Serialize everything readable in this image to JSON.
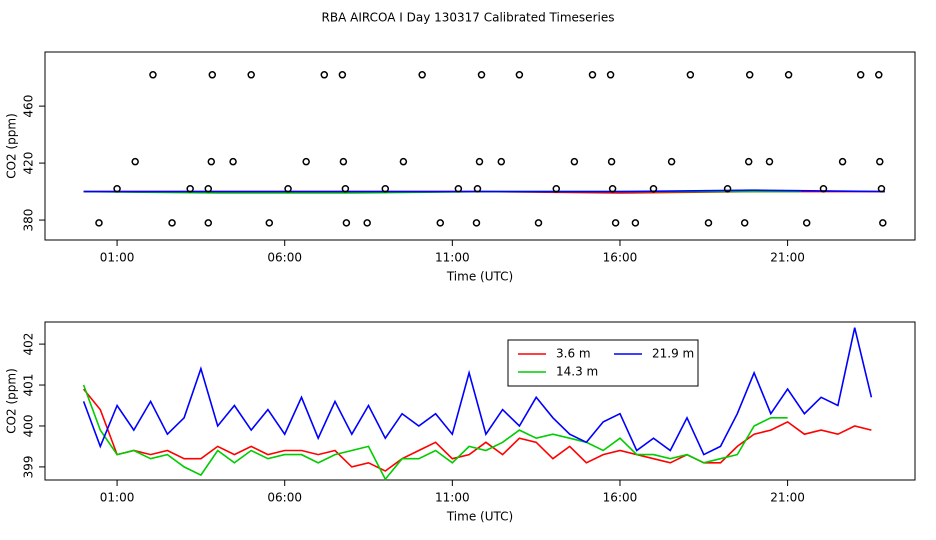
{
  "chart_data": [
    {
      "type": "line",
      "title": "RBA AIRCOA I  Day 130317  Calibrated Timeseries",
      "x_label": "Time (UTC)",
      "y_label": "CO2 (ppm)",
      "xlim": [
        -1.15,
        24.8
      ],
      "ylim": [
        366,
        498
      ],
      "xticks": [
        {
          "value": 1,
          "label": "01:00"
        },
        {
          "value": 6,
          "label": "06:00"
        },
        {
          "value": 11,
          "label": "11:00"
        },
        {
          "value": 16,
          "label": "16:00"
        },
        {
          "value": 21,
          "label": "21:00"
        }
      ],
      "yticks": [
        380,
        420,
        460
      ],
      "series": [
        {
          "color": "#ff0000",
          "style": "line",
          "x": [
            0,
            4,
            8,
            12,
            16,
            20,
            23.9
          ],
          "values": [
            400,
            400,
            400,
            400,
            399,
            400,
            400
          ]
        },
        {
          "color": "#00cc00",
          "style": "line",
          "x": [
            0,
            4,
            8,
            12,
            16,
            20,
            21.4
          ],
          "values": [
            400,
            399,
            399,
            400,
            400,
            400,
            400
          ]
        },
        {
          "color": "#0000ff",
          "style": "line",
          "x": [
            0,
            4,
            8,
            12,
            16,
            20,
            23.9
          ],
          "values": [
            400,
            400,
            400,
            400,
            400,
            401,
            400
          ]
        },
        {
          "color": "#000000",
          "style": "points",
          "x": [
            2.07,
            3.84,
            5.0,
            7.18,
            7.72,
            10.1,
            11.87,
            13.0,
            15.18,
            15.72,
            18.1,
            19.87,
            21.03,
            23.18,
            23.72,
            1.54,
            3.81,
            4.46,
            6.64,
            7.75,
            9.54,
            11.81,
            12.46,
            14.64,
            15.75,
            17.54,
            19.84,
            20.46,
            22.64,
            23.75,
            1.0,
            3.18,
            3.72,
            6.1,
            7.81,
            9.0,
            11.18,
            11.75,
            14.1,
            15.78,
            17.0,
            19.21,
            22.07,
            23.8,
            0.46,
            2.64,
            3.72,
            5.54,
            7.84,
            8.46,
            10.64,
            11.72,
            13.57,
            15.87,
            16.46,
            18.64,
            19.72,
            21.57,
            23.84
          ],
          "values": [
            482,
            482,
            482,
            482,
            482,
            482,
            482,
            482,
            482,
            482,
            482,
            482,
            482,
            482,
            482,
            421,
            421,
            421,
            421,
            421,
            421,
            421,
            421,
            421,
            421,
            421,
            421,
            421,
            421,
            421,
            402,
            402,
            402,
            402,
            402,
            402,
            402,
            402,
            402,
            402,
            402,
            402,
            402,
            402,
            378,
            378,
            378,
            378,
            378,
            378,
            378,
            378,
            378,
            378,
            378,
            378,
            378,
            378,
            378
          ]
        }
      ]
    },
    {
      "type": "line",
      "x_label": "Time (UTC)",
      "y_label": "CO2 (ppm)",
      "xlim": [
        -1.15,
        24.8
      ],
      "ylim": [
        398.68,
        402.54
      ],
      "xticks": [
        {
          "value": 1,
          "label": "01:00"
        },
        {
          "value": 6,
          "label": "06:00"
        },
        {
          "value": 11,
          "label": "11:00"
        },
        {
          "value": 16,
          "label": "16:00"
        },
        {
          "value": 21,
          "label": "21:00"
        }
      ],
      "yticks": [
        399,
        400,
        401,
        402
      ],
      "legend_position": "top",
      "x": [
        0,
        0.5,
        1,
        1.5,
        2,
        2.5,
        3,
        3.5,
        4,
        4.5,
        5,
        5.5,
        6,
        6.5,
        7,
        7.5,
        8,
        8.5,
        9,
        9.5,
        10,
        10.5,
        11,
        11.5,
        12,
        12.5,
        13,
        13.5,
        14,
        14.5,
        15,
        15.5,
        16,
        16.5,
        17,
        17.5,
        18,
        18.5,
        19,
        19.5,
        20,
        20.5,
        21,
        21.5,
        22,
        22.5,
        23,
        23.5
      ],
      "series": [
        {
          "name": "3.6 m",
          "color": "#ff0000",
          "values": [
            400.9,
            400.4,
            399.3,
            399.4,
            399.3,
            399.4,
            399.2,
            399.2,
            399.5,
            399.3,
            399.5,
            399.3,
            399.4,
            399.4,
            399.3,
            399.4,
            399.0,
            399.1,
            398.9,
            399.2,
            399.4,
            399.6,
            399.2,
            399.3,
            399.6,
            399.3,
            399.7,
            399.6,
            399.2,
            399.5,
            399.1,
            399.3,
            399.4,
            399.3,
            399.2,
            399.1,
            399.3,
            399.1,
            399.1,
            399.5,
            399.8,
            399.9,
            400.1,
            399.8,
            399.9,
            399.8,
            400.0,
            399.9
          ]
        },
        {
          "name": "14.3 m",
          "color": "#00cc00",
          "values": [
            401.0,
            399.9,
            399.3,
            399.4,
            399.2,
            399.3,
            399.0,
            398.8,
            399.4,
            399.1,
            399.4,
            399.2,
            399.3,
            399.3,
            399.1,
            399.3,
            399.4,
            399.5,
            398.7,
            399.2,
            399.2,
            399.4,
            399.1,
            399.5,
            399.4,
            399.6,
            399.9,
            399.7,
            399.8,
            399.7,
            399.6,
            399.4,
            399.7,
            399.3,
            399.3,
            399.2,
            399.3,
            399.1,
            399.2,
            399.3,
            400.0,
            400.2,
            400.2,
            null,
            null,
            null,
            null,
            null
          ]
        },
        {
          "name": "21.9 m",
          "color": "#0000ff",
          "values": [
            400.6,
            399.5,
            400.5,
            399.9,
            400.6,
            399.8,
            400.2,
            401.4,
            400.0,
            400.5,
            399.9,
            400.4,
            399.8,
            400.7,
            399.7,
            400.6,
            399.8,
            400.5,
            399.7,
            400.3,
            400.0,
            400.3,
            399.8,
            401.3,
            399.8,
            400.4,
            400.0,
            400.7,
            400.2,
            399.8,
            399.6,
            400.1,
            400.3,
            399.4,
            399.7,
            399.4,
            400.2,
            399.3,
            399.5,
            400.3,
            401.3,
            400.3,
            400.9,
            400.3,
            400.7,
            400.5,
            402.4,
            400.7
          ]
        }
      ]
    }
  ]
}
